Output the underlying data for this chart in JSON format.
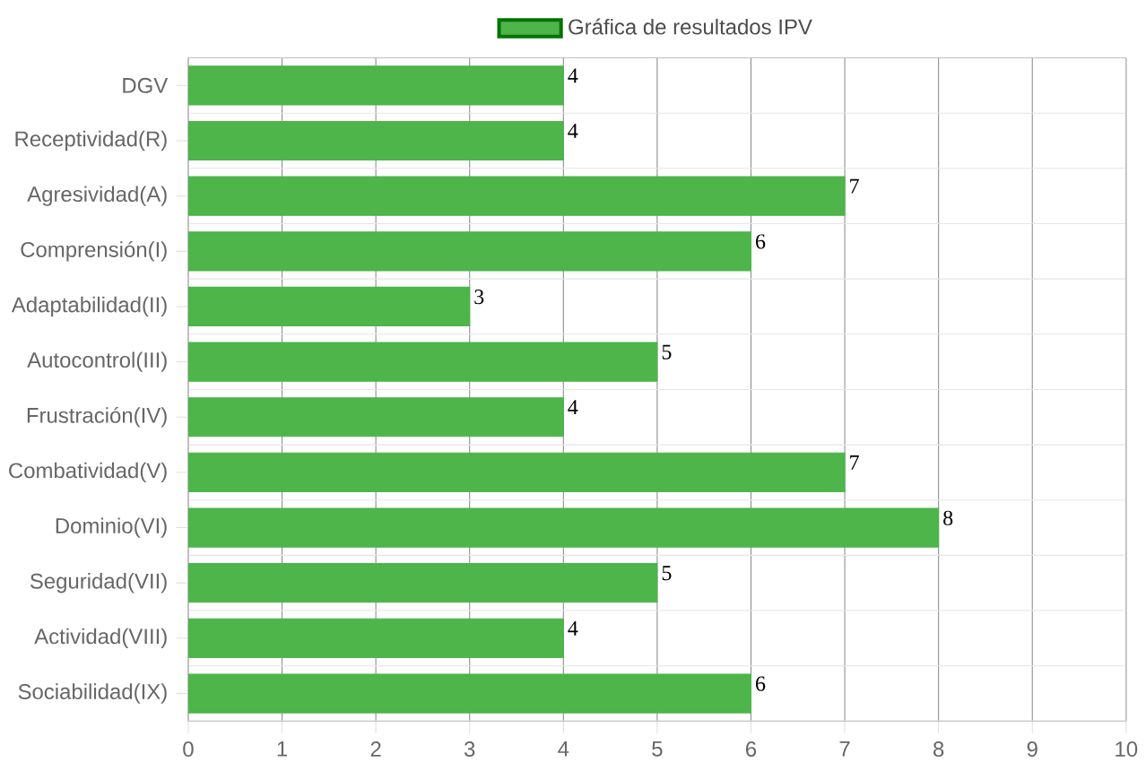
{
  "chart_data": {
    "type": "bar",
    "orientation": "horizontal",
    "categories": [
      "DGV",
      "Receptividad(R)",
      "Agresividad(A)",
      "Comprensión(I)",
      "Adaptabilidad(II)",
      "Autocontrol(III)",
      "Frustración(IV)",
      "Combatividad(V)",
      "Dominio(VI)",
      "Seguridad(VII)",
      "Actividad(VIII)",
      "Sociabilidad(IX)"
    ],
    "series": [
      {
        "name": "Gráfica de resultados IPV",
        "color": "#4db54a",
        "values": [
          4,
          4,
          7,
          6,
          3,
          5,
          4,
          7,
          8,
          5,
          4,
          6
        ]
      }
    ],
    "xlim": [
      0,
      10
    ],
    "xticks": [
      0,
      1,
      2,
      3,
      4,
      5,
      6,
      7,
      8,
      9,
      10
    ],
    "grid": true,
    "legend": "top",
    "data_labels": true
  }
}
